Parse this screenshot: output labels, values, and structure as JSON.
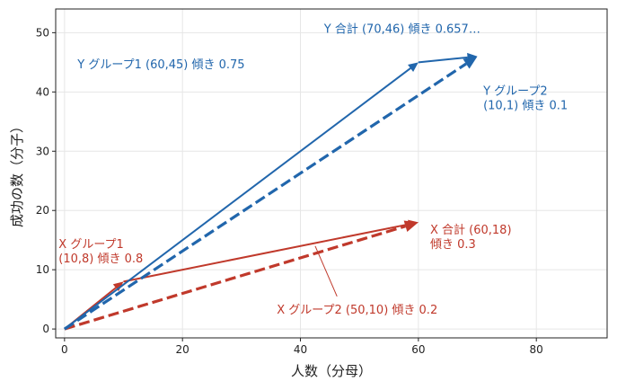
{
  "chart_data": {
    "type": "line",
    "xlabel": "人数（分母）",
    "ylabel": "成功の数（分子）",
    "xlim": [
      -1.5,
      92
    ],
    "ylim": [
      -1.5,
      54
    ],
    "xticks": [
      0,
      20,
      40,
      60,
      80
    ],
    "yticks": [
      0,
      10,
      20,
      30,
      40,
      50
    ],
    "grid": true,
    "colors": {
      "x": "#c0392b",
      "y": "#2166ac"
    },
    "vectors": [
      {
        "id": "x-group1",
        "group": "x",
        "style": "solid",
        "points": [
          [
            0,
            0
          ],
          [
            10,
            8
          ]
        ]
      },
      {
        "id": "x-group2",
        "group": "x",
        "style": "solid",
        "points": [
          [
            10,
            8
          ],
          [
            60,
            18
          ]
        ]
      },
      {
        "id": "x-total",
        "group": "x",
        "style": "dashed",
        "points": [
          [
            0,
            0
          ],
          [
            60,
            18
          ]
        ]
      },
      {
        "id": "y-group1",
        "group": "y",
        "style": "solid",
        "points": [
          [
            0,
            0
          ],
          [
            60,
            45
          ]
        ]
      },
      {
        "id": "y-group2",
        "group": "y",
        "style": "solid",
        "points": [
          [
            60,
            45
          ],
          [
            70,
            46
          ]
        ]
      },
      {
        "id": "y-total",
        "group": "y",
        "style": "dashed",
        "points": [
          [
            0,
            0
          ],
          [
            70,
            46
          ]
        ]
      }
    ],
    "annotations": [
      {
        "id": "y-total-label",
        "group": "y",
        "lines": [
          "Y 合計 (70,46) 傾き 0.657…"
        ],
        "pos": [
          44,
          50
        ]
      },
      {
        "id": "y-group1-label",
        "group": "y",
        "lines": [
          "Y グループ1 (60,45) 傾き 0.75"
        ],
        "pos": [
          2.2,
          44
        ]
      },
      {
        "id": "y-group2-label",
        "group": "y",
        "lines": [
          "Y グループ2",
          "(10,1) 傾き 0.1"
        ],
        "pos": [
          71,
          39.5
        ]
      },
      {
        "id": "x-group1-label",
        "group": "x",
        "lines": [
          "X グループ1",
          "(10,8) 傾き 0.8"
        ],
        "pos": [
          -1,
          13.7
        ]
      },
      {
        "id": "x-total-label",
        "group": "x",
        "lines": [
          "X 合計 (60,18)",
          "傾き 0.3"
        ],
        "pos": [
          62,
          16.1
        ]
      },
      {
        "id": "x-group2-label",
        "group": "x",
        "lines": [
          "X グループ2 (50,10) 傾き 0.2"
        ],
        "pos": [
          36,
          2.6
        ],
        "pointer": [
          [
            46.2,
            5.5
          ],
          [
            42.5,
            14
          ]
        ]
      }
    ]
  }
}
